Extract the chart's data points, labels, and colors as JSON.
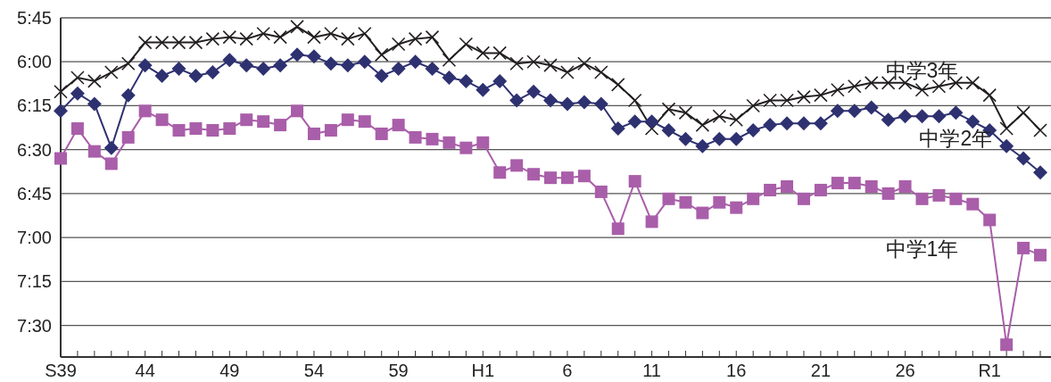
{
  "chart_data": {
    "type": "line",
    "categories": [
      "S39",
      null,
      null,
      null,
      null,
      "44",
      null,
      null,
      null,
      null,
      "49",
      null,
      null,
      null,
      null,
      "54",
      null,
      null,
      null,
      null,
      "59",
      null,
      null,
      null,
      null,
      "H1",
      null,
      null,
      null,
      null,
      "6",
      null,
      null,
      null,
      null,
      "11",
      null,
      null,
      null,
      null,
      "16",
      null,
      null,
      null,
      null,
      "21",
      null,
      null,
      null,
      null,
      "26",
      null,
      null,
      null,
      null,
      "R1",
      null,
      null,
      null
    ],
    "ylim": [
      7.68,
      5.75
    ],
    "yticks": [
      {
        "value": 5.75,
        "label": "5:45"
      },
      {
        "value": 6,
        "label": "6:00"
      },
      {
        "value": 6.25,
        "label": "6:15"
      },
      {
        "value": 6.5,
        "label": "6:30"
      },
      {
        "value": 6.75,
        "label": "6:45"
      },
      {
        "value": 7,
        "label": "7:00"
      },
      {
        "value": 7.25,
        "label": "7:15"
      },
      {
        "value": 7.5,
        "label": "7:30"
      }
    ],
    "grid": "y",
    "line_style": "solid",
    "series": [
      {
        "name": "中学3年",
        "color": "#231f20",
        "marker": "cross",
        "values": [
          6.17,
          6.09,
          6.11,
          6.06,
          6.01,
          5.89,
          5.89,
          5.89,
          5.89,
          5.87,
          5.86,
          5.87,
          5.84,
          5.86,
          5.8,
          5.86,
          5.84,
          5.87,
          5.84,
          5.96,
          5.9,
          5.87,
          5.86,
          5.99,
          5.9,
          5.95,
          5.95,
          6.01,
          6.0,
          6.02,
          6.06,
          6.01,
          6.06,
          6.13,
          6.22,
          6.38,
          6.27,
          6.29,
          6.36,
          6.31,
          6.33,
          6.25,
          6.22,
          6.22,
          6.2,
          6.19,
          6.16,
          6.14,
          6.12,
          6.12,
          6.12,
          6.16,
          6.14,
          6.12,
          6.12,
          6.19,
          6.38,
          6.29,
          6.39
        ]
      },
      {
        "name": "中学2年",
        "color": "#2e3170",
        "marker": "diamond",
        "values": [
          6.28,
          6.18,
          6.24,
          6.49,
          6.19,
          6.02,
          6.08,
          6.04,
          6.08,
          6.06,
          5.99,
          6.02,
          6.04,
          6.02,
          5.96,
          5.97,
          6.01,
          6.02,
          6.0,
          6.08,
          6.04,
          6.0,
          6.04,
          6.09,
          6.11,
          6.16,
          6.11,
          6.22,
          6.17,
          6.22,
          6.24,
          6.23,
          6.24,
          6.38,
          6.34,
          6.34,
          6.39,
          6.44,
          6.48,
          6.44,
          6.44,
          6.39,
          6.36,
          6.35,
          6.35,
          6.35,
          6.28,
          6.28,
          6.26,
          6.33,
          6.31,
          6.31,
          6.31,
          6.29,
          6.34,
          6.39,
          6.48,
          6.55,
          6.63
        ]
      },
      {
        "name": "中学1年",
        "color": "#a95ea9",
        "marker": "square",
        "values": [
          6.55,
          6.38,
          6.51,
          6.58,
          6.43,
          6.28,
          6.33,
          6.39,
          6.38,
          6.39,
          6.38,
          6.33,
          6.34,
          6.36,
          6.28,
          6.41,
          6.39,
          6.33,
          6.34,
          6.41,
          6.36,
          6.43,
          6.44,
          6.46,
          6.49,
          6.46,
          6.63,
          6.59,
          6.64,
          6.66,
          6.66,
          6.65,
          6.74,
          6.95,
          6.68,
          6.91,
          6.78,
          6.8,
          6.86,
          6.8,
          6.83,
          6.78,
          6.73,
          6.71,
          6.78,
          6.73,
          6.69,
          6.69,
          6.71,
          6.75,
          6.71,
          6.78,
          6.76,
          6.78,
          6.81,
          6.9,
          7.61,
          7.06,
          7.1
        ]
      }
    ]
  }
}
